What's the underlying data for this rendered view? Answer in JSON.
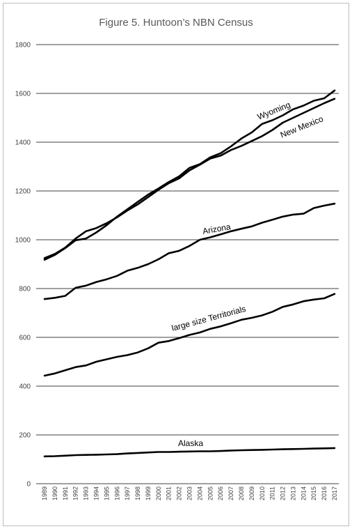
{
  "chart_data": {
    "type": "line",
    "title": "Figure 5. Huntoon’s NBN Census",
    "xlabel": "",
    "ylabel": "",
    "ylim": [
      0,
      1800
    ],
    "yticks": [
      0,
      200,
      400,
      600,
      800,
      1000,
      1200,
      1400,
      1600,
      1800
    ],
    "grid": true,
    "x": [
      1989,
      1990,
      1991,
      1992,
      1993,
      1994,
      1995,
      1996,
      1997,
      1998,
      1999,
      2000,
      2001,
      2002,
      2003,
      2004,
      2005,
      2006,
      2007,
      2008,
      2009,
      2010,
      2011,
      2012,
      2013,
      2014,
      2015,
      2016,
      2017
    ],
    "series": [
      {
        "label": "Wyoming",
        "values": [
          918,
          938,
          966,
          998,
          1005,
          1030,
          1060,
          1095,
          1125,
          1155,
          1185,
          1210,
          1237,
          1260,
          1295,
          1310,
          1338,
          1355,
          1383,
          1415,
          1440,
          1475,
          1490,
          1510,
          1535,
          1550,
          1570,
          1580,
          1612
        ]
      },
      {
        "label": "New Mexico",
        "values": [
          925,
          942,
          968,
          1005,
          1035,
          1048,
          1068,
          1092,
          1120,
          1145,
          1175,
          1205,
          1232,
          1252,
          1285,
          1308,
          1333,
          1345,
          1368,
          1385,
          1405,
          1425,
          1450,
          1480,
          1500,
          1520,
          1540,
          1560,
          1578
        ]
      },
      {
        "label": "Arizona",
        "values": [
          757,
          762,
          770,
          803,
          812,
          827,
          838,
          852,
          873,
          885,
          900,
          920,
          945,
          955,
          975,
          1000,
          1010,
          1022,
          1035,
          1045,
          1055,
          1070,
          1082,
          1095,
          1103,
          1107,
          1130,
          1140,
          1148
        ]
      },
      {
        "label": "large size Territorials",
        "values": [
          443,
          452,
          465,
          478,
          485,
          500,
          510,
          520,
          527,
          538,
          555,
          578,
          585,
          597,
          610,
          620,
          635,
          645,
          658,
          672,
          680,
          690,
          705,
          725,
          735,
          748,
          755,
          760,
          778
        ]
      },
      {
        "label": "Alaska",
        "values": [
          112,
          113,
          115,
          117,
          118,
          119,
          120,
          121,
          124,
          126,
          128,
          130,
          130,
          131,
          132,
          133,
          133,
          134,
          136,
          137,
          138,
          139,
          140,
          141,
          142,
          143,
          144,
          145,
          146
        ]
      }
    ]
  }
}
